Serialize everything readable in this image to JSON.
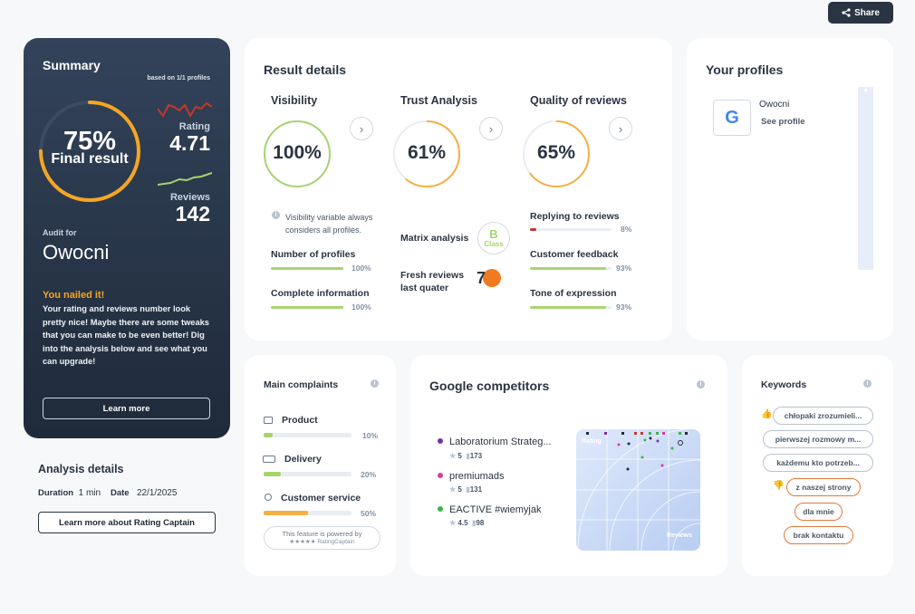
{
  "share": {
    "label": "Share"
  },
  "summary": {
    "title": "Summary",
    "based_on": "based on 1/1 profiles",
    "final_percent": "75%",
    "final_label": "Final result",
    "final_fraction": 0.75,
    "rating_label": "Rating",
    "rating_value": "4.71",
    "reviews_label": "Reviews",
    "reviews_value": "142",
    "audit_for_label": "Audit for",
    "audit_name": "Owocni",
    "nailed_title": "You nailed it!",
    "nailed_text": "Your rating and reviews number look pretty nice! Maybe there are some tweaks that you can make to be even better! Dig into the analysis below and see what you can upgrade!",
    "learn_more": "Learn more"
  },
  "analysis": {
    "title": "Analysis details",
    "duration_label": "Duration",
    "duration_value": "1 min",
    "date_label": "Date",
    "date_value": "22/1/2025",
    "button": "Learn more about Rating Captain"
  },
  "result": {
    "title": "Result details",
    "visibility": {
      "title": "Visibility",
      "value": "100%",
      "fraction": 1.0,
      "color": "#a8d46f",
      "note": "Visibility variable always considers all profiles.",
      "metrics": [
        {
          "label": "Number of profiles",
          "value": "100%",
          "fraction": 1.0
        },
        {
          "label": "Complete information",
          "value": "100%",
          "fraction": 1.0
        }
      ]
    },
    "trust": {
      "title": "Trust Analysis",
      "value": "61%",
      "fraction": 0.61,
      "color": "#f5b041",
      "matrix_label": "Matrix analysis",
      "class_letter": "B",
      "class_word": "Class",
      "fresh_label": "Fresh reviews last quater",
      "fresh_value": "7"
    },
    "quality": {
      "title": "Quality of reviews",
      "value": "65%",
      "fraction": 0.65,
      "color": "#f5b041",
      "metrics": [
        {
          "label": "Replying to reviews",
          "value": "8%",
          "fraction": 0.08,
          "color": "#c0392b"
        },
        {
          "label": "Customer feedback",
          "value": "93%",
          "fraction": 0.93,
          "color": "#a8d46f"
        },
        {
          "label": "Tone of expression",
          "value": "93%",
          "fraction": 0.93,
          "color": "#a8d46f"
        }
      ]
    }
  },
  "profiles": {
    "title": "Your profiles",
    "items": [
      {
        "name": "Owocni",
        "link": "See profile",
        "icon": "google-icon"
      }
    ]
  },
  "complaints": {
    "title": "Main complaints",
    "items": [
      {
        "label": "Product",
        "value": "10%",
        "fraction": 0.1,
        "color": "#a8d46f",
        "icon": "basket-icon"
      },
      {
        "label": "Delivery",
        "value": "20%",
        "fraction": 0.2,
        "color": "#a8d46f",
        "icon": "truck-icon"
      },
      {
        "label": "Customer service",
        "value": "50%",
        "fraction": 0.5,
        "color": "#f5b041",
        "icon": "person-icon"
      }
    ],
    "powered_line1": "This feature is powered by",
    "powered_line2": "★★★★★ RatingCaptain"
  },
  "competitors": {
    "title": "Google competitors",
    "items": [
      {
        "name": "Laboratorium Strateg...",
        "rating": "5",
        "reviews": "173",
        "color": "#7b2fa8"
      },
      {
        "name": "premiumads",
        "rating": "5",
        "reviews": "131",
        "color": "#d63aa0"
      },
      {
        "name": "EACTIVE #wiemyjak",
        "rating": "4.5",
        "reviews": "98",
        "color": "#3bb54a"
      }
    ],
    "chart_y_label": "Rating",
    "chart_x_label": "Reviews"
  },
  "keywords": {
    "title": "Keywords",
    "positive": [
      "chłopaki zrozumieli...",
      "pierwszej rozmowy m...",
      "każdemu kto potrzeb..."
    ],
    "negative": [
      "z naszej strony",
      "dla mnie",
      "brak kontaktu"
    ]
  }
}
